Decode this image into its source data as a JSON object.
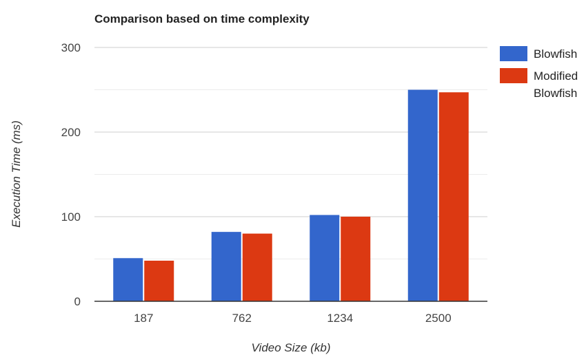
{
  "chart_data": {
    "type": "bar",
    "title": "Comparison based on time complexity",
    "xlabel": "Video Size (kb)",
    "ylabel": "Execution Time (ms)",
    "categories": [
      "187",
      "762",
      "1234",
      "2500"
    ],
    "series": [
      {
        "name": "Blowfish",
        "color": "#3366cc",
        "values": [
          51,
          82,
          102,
          250
        ]
      },
      {
        "name": "Modified Blowfish",
        "color": "#dc3912",
        "values": [
          48,
          80,
          100,
          247
        ]
      }
    ],
    "ylim": [
      0,
      300
    ],
    "yticks": [
      0,
      100,
      200,
      300
    ],
    "grid": true,
    "legend_position": "right"
  }
}
